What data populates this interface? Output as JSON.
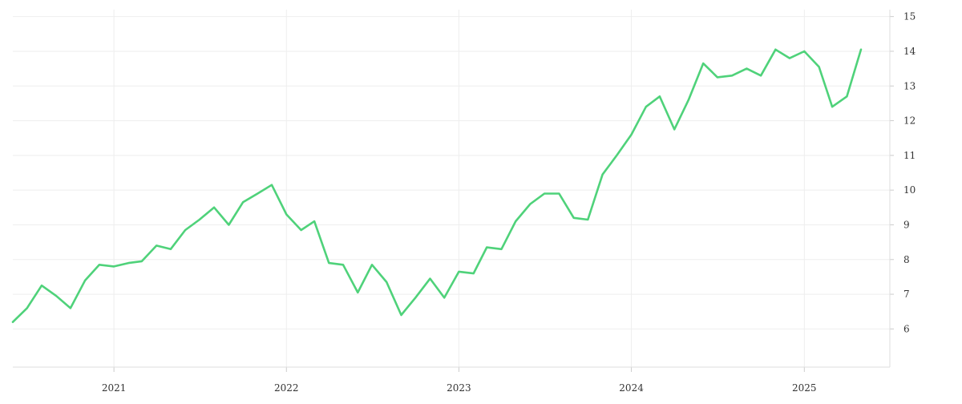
{
  "chart_data": {
    "type": "line",
    "title": "",
    "xlabel": "",
    "ylabel": "",
    "x_tick_labels": [
      "2021",
      "2022",
      "2023",
      "2024",
      "2025"
    ],
    "x_tick_dates": [
      "2021-01-01",
      "2022-01-01",
      "2023-01-01",
      "2024-01-01",
      "2025-01-01"
    ],
    "xlim": [
      "2020-06-01",
      "2025-07-01"
    ],
    "y_ticks": [
      6,
      7,
      8,
      9,
      10,
      11,
      12,
      13,
      14,
      15
    ],
    "y_tick_labels": [
      "6",
      "7",
      "8",
      "9",
      "10",
      "11",
      "12",
      "13",
      "14",
      "15"
    ],
    "ylim": [
      4.9,
      15.2
    ],
    "y_axis_side": "right",
    "grid": true,
    "legend": "none",
    "series": [
      {
        "color": "#4fd27a",
        "x": [
          "2020-06-01",
          "2020-07-01",
          "2020-08-01",
          "2020-09-01",
          "2020-10-01",
          "2020-11-01",
          "2020-12-01",
          "2021-01-01",
          "2021-02-01",
          "2021-03-01",
          "2021-04-01",
          "2021-05-01",
          "2021-06-01",
          "2021-07-01",
          "2021-08-01",
          "2021-09-01",
          "2021-10-01",
          "2021-11-01",
          "2021-12-01",
          "2022-01-01",
          "2022-02-01",
          "2022-03-01",
          "2022-04-01",
          "2022-05-01",
          "2022-06-01",
          "2022-07-01",
          "2022-08-01",
          "2022-09-01",
          "2022-10-01",
          "2022-11-01",
          "2022-12-01",
          "2023-01-01",
          "2023-02-01",
          "2023-03-01",
          "2023-04-01",
          "2023-05-01",
          "2023-06-01",
          "2023-07-01",
          "2023-08-01",
          "2023-09-01",
          "2023-10-01",
          "2023-11-01",
          "2023-12-01",
          "2024-01-01",
          "2024-02-01",
          "2024-03-01",
          "2024-04-01",
          "2024-05-01",
          "2024-06-01",
          "2024-07-01",
          "2024-08-01",
          "2024-09-01",
          "2024-10-01",
          "2024-11-01",
          "2024-12-01",
          "2025-01-01",
          "2025-02-01",
          "2025-03-01",
          "2025-04-01",
          "2025-05-01"
        ],
        "y": [
          6.2,
          6.6,
          7.25,
          6.95,
          6.6,
          7.4,
          7.85,
          7.8,
          7.9,
          7.95,
          8.4,
          8.3,
          8.85,
          9.15,
          9.5,
          9.0,
          9.65,
          9.9,
          10.15,
          9.3,
          8.85,
          9.1,
          7.9,
          7.85,
          7.05,
          7.85,
          7.35,
          6.4,
          6.9,
          7.45,
          6.9,
          7.65,
          7.6,
          8.35,
          8.3,
          9.1,
          9.6,
          9.9,
          9.9,
          9.2,
          9.15,
          10.45,
          11.0,
          11.6,
          12.4,
          12.7,
          11.75,
          12.6,
          13.65,
          13.25,
          13.3,
          13.5,
          13.3,
          14.05,
          13.8,
          14.0,
          13.55,
          12.4,
          12.7,
          14.05
        ]
      }
    ]
  }
}
